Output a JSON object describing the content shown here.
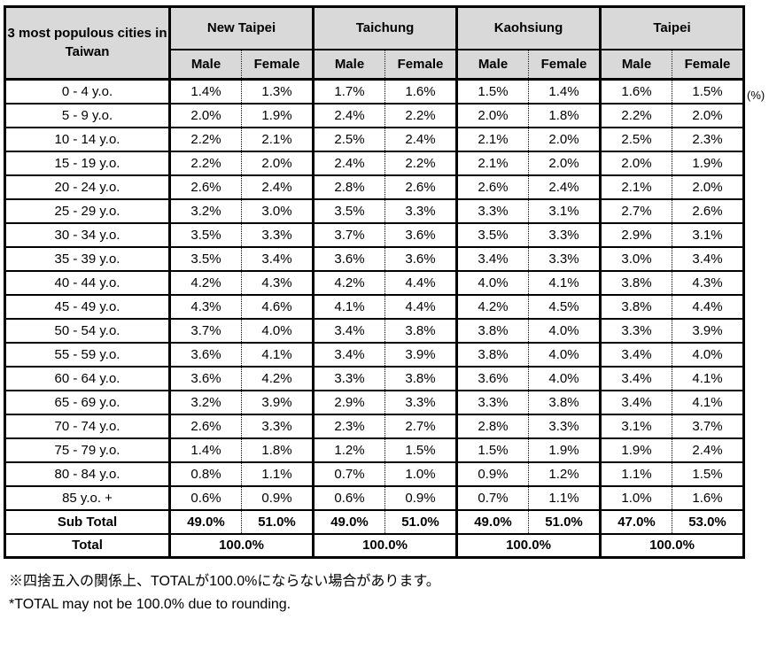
{
  "unit_label": "(%)",
  "table": {
    "corner_label": "3 most populous cities in Taiwan",
    "city_headers": [
      "New Taipei",
      "Taichung",
      "Kaohsiung",
      "Taipei"
    ],
    "sex_headers": [
      "Male",
      "Female"
    ],
    "rows": [
      {
        "label": "0 - 4 y.o.",
        "values": [
          "1.4%",
          "1.3%",
          "1.7%",
          "1.6%",
          "1.5%",
          "1.4%",
          "1.6%",
          "1.5%"
        ]
      },
      {
        "label": "5 - 9 y.o.",
        "values": [
          "2.0%",
          "1.9%",
          "2.4%",
          "2.2%",
          "2.0%",
          "1.8%",
          "2.2%",
          "2.0%"
        ]
      },
      {
        "label": "10 - 14 y.o.",
        "values": [
          "2.2%",
          "2.1%",
          "2.5%",
          "2.4%",
          "2.1%",
          "2.0%",
          "2.5%",
          "2.3%"
        ]
      },
      {
        "label": "15 - 19 y.o.",
        "values": [
          "2.2%",
          "2.0%",
          "2.4%",
          "2.2%",
          "2.1%",
          "2.0%",
          "2.0%",
          "1.9%"
        ]
      },
      {
        "label": "20 - 24 y.o.",
        "values": [
          "2.6%",
          "2.4%",
          "2.8%",
          "2.6%",
          "2.6%",
          "2.4%",
          "2.1%",
          "2.0%"
        ]
      },
      {
        "label": "25 - 29 y.o.",
        "values": [
          "3.2%",
          "3.0%",
          "3.5%",
          "3.3%",
          "3.3%",
          "3.1%",
          "2.7%",
          "2.6%"
        ]
      },
      {
        "label": "30 - 34 y.o.",
        "values": [
          "3.5%",
          "3.3%",
          "3.7%",
          "3.6%",
          "3.5%",
          "3.3%",
          "2.9%",
          "3.1%"
        ]
      },
      {
        "label": "35 - 39 y.o.",
        "values": [
          "3.5%",
          "3.4%",
          "3.6%",
          "3.6%",
          "3.4%",
          "3.3%",
          "3.0%",
          "3.4%"
        ]
      },
      {
        "label": "40 - 44 y.o.",
        "values": [
          "4.2%",
          "4.3%",
          "4.2%",
          "4.4%",
          "4.0%",
          "4.1%",
          "3.8%",
          "4.3%"
        ]
      },
      {
        "label": "45 - 49 y.o.",
        "values": [
          "4.3%",
          "4.6%",
          "4.1%",
          "4.4%",
          "4.2%",
          "4.5%",
          "3.8%",
          "4.4%"
        ]
      },
      {
        "label": "50 - 54 y.o.",
        "values": [
          "3.7%",
          "4.0%",
          "3.4%",
          "3.8%",
          "3.8%",
          "4.0%",
          "3.3%",
          "3.9%"
        ]
      },
      {
        "label": "55 - 59 y.o.",
        "values": [
          "3.6%",
          "4.1%",
          "3.4%",
          "3.9%",
          "3.8%",
          "4.0%",
          "3.4%",
          "4.0%"
        ]
      },
      {
        "label": "60 - 64 y.o.",
        "values": [
          "3.6%",
          "4.2%",
          "3.3%",
          "3.8%",
          "3.6%",
          "4.0%",
          "3.4%",
          "4.1%"
        ]
      },
      {
        "label": "65 - 69 y.o.",
        "values": [
          "3.2%",
          "3.9%",
          "2.9%",
          "3.3%",
          "3.3%",
          "3.8%",
          "3.4%",
          "4.1%"
        ]
      },
      {
        "label": "70 - 74 y.o.",
        "values": [
          "2.6%",
          "3.3%",
          "2.3%",
          "2.7%",
          "2.8%",
          "3.3%",
          "3.1%",
          "3.7%"
        ]
      },
      {
        "label": "75 - 79 y.o.",
        "values": [
          "1.4%",
          "1.8%",
          "1.2%",
          "1.5%",
          "1.5%",
          "1.9%",
          "1.9%",
          "2.4%"
        ]
      },
      {
        "label": "80 - 84 y.o.",
        "values": [
          "0.8%",
          "1.1%",
          "0.7%",
          "1.0%",
          "0.9%",
          "1.2%",
          "1.1%",
          "1.5%"
        ]
      },
      {
        "label": "85 y.o. +",
        "values": [
          "0.6%",
          "0.9%",
          "0.6%",
          "0.9%",
          "0.7%",
          "1.1%",
          "1.0%",
          "1.6%"
        ]
      }
    ],
    "sub_total": {
      "label": "Sub Total",
      "values": [
        "49.0%",
        "51.0%",
        "49.0%",
        "51.0%",
        "49.0%",
        "51.0%",
        "47.0%",
        "53.0%"
      ]
    },
    "total": {
      "label": "Total",
      "values": [
        "100.0%",
        "100.0%",
        "100.0%",
        "100.0%"
      ]
    }
  },
  "footnotes": {
    "ja": "※四捨五入の関係上、TOTALが100.0%にならない場合があります。",
    "en": "*TOTAL may not be 100.0% due to rounding."
  },
  "colors": {
    "header_bg": "#d9d9d9",
    "border": "#000000",
    "text": "#000000"
  },
  "chart_data": {
    "type": "table",
    "title": "3 most populous cities in Taiwan",
    "unit": "%",
    "columns": [
      "New Taipei Male",
      "New Taipei Female",
      "Taichung Male",
      "Taichung Female",
      "Kaohsiung Male",
      "Kaohsiung Female",
      "Taipei Male",
      "Taipei Female"
    ],
    "row_labels": [
      "0 - 4 y.o.",
      "5 - 9 y.o.",
      "10 - 14 y.o.",
      "15 - 19 y.o.",
      "20 - 24 y.o.",
      "25 - 29 y.o.",
      "30 - 34 y.o.",
      "35 - 39 y.o.",
      "40 - 44 y.o.",
      "45 - 49 y.o.",
      "50 - 54 y.o.",
      "55 - 59 y.o.",
      "60 - 64 y.o.",
      "65 - 69 y.o.",
      "70 - 74 y.o.",
      "75 - 79 y.o.",
      "80 - 84 y.o.",
      "85 y.o. +"
    ],
    "values": [
      [
        1.4,
        1.3,
        1.7,
        1.6,
        1.5,
        1.4,
        1.6,
        1.5
      ],
      [
        2.0,
        1.9,
        2.4,
        2.2,
        2.0,
        1.8,
        2.2,
        2.0
      ],
      [
        2.2,
        2.1,
        2.5,
        2.4,
        2.1,
        2.0,
        2.5,
        2.3
      ],
      [
        2.2,
        2.0,
        2.4,
        2.2,
        2.1,
        2.0,
        2.0,
        1.9
      ],
      [
        2.6,
        2.4,
        2.8,
        2.6,
        2.6,
        2.4,
        2.1,
        2.0
      ],
      [
        3.2,
        3.0,
        3.5,
        3.3,
        3.3,
        3.1,
        2.7,
        2.6
      ],
      [
        3.5,
        3.3,
        3.7,
        3.6,
        3.5,
        3.3,
        2.9,
        3.1
      ],
      [
        3.5,
        3.4,
        3.6,
        3.6,
        3.4,
        3.3,
        3.0,
        3.4
      ],
      [
        4.2,
        4.3,
        4.2,
        4.4,
        4.0,
        4.1,
        3.8,
        4.3
      ],
      [
        4.3,
        4.6,
        4.1,
        4.4,
        4.2,
        4.5,
        3.8,
        4.4
      ],
      [
        3.7,
        4.0,
        3.4,
        3.8,
        3.8,
        4.0,
        3.3,
        3.9
      ],
      [
        3.6,
        4.1,
        3.4,
        3.9,
        3.8,
        4.0,
        3.4,
        4.0
      ],
      [
        3.6,
        4.2,
        3.3,
        3.8,
        3.6,
        4.0,
        3.4,
        4.1
      ],
      [
        3.2,
        3.9,
        2.9,
        3.3,
        3.3,
        3.8,
        3.4,
        4.1
      ],
      [
        2.6,
        3.3,
        2.3,
        2.7,
        2.8,
        3.3,
        3.1,
        3.7
      ],
      [
        1.4,
        1.8,
        1.2,
        1.5,
        1.5,
        1.9,
        1.9,
        2.4
      ],
      [
        0.8,
        1.1,
        0.7,
        1.0,
        0.9,
        1.2,
        1.1,
        1.5
      ],
      [
        0.6,
        0.9,
        0.6,
        0.9,
        0.7,
        1.1,
        1.0,
        1.6
      ]
    ],
    "sub_total": [
      49.0,
      51.0,
      49.0,
      51.0,
      49.0,
      51.0,
      47.0,
      53.0
    ],
    "total": [
      100.0,
      100.0,
      100.0,
      100.0
    ]
  }
}
